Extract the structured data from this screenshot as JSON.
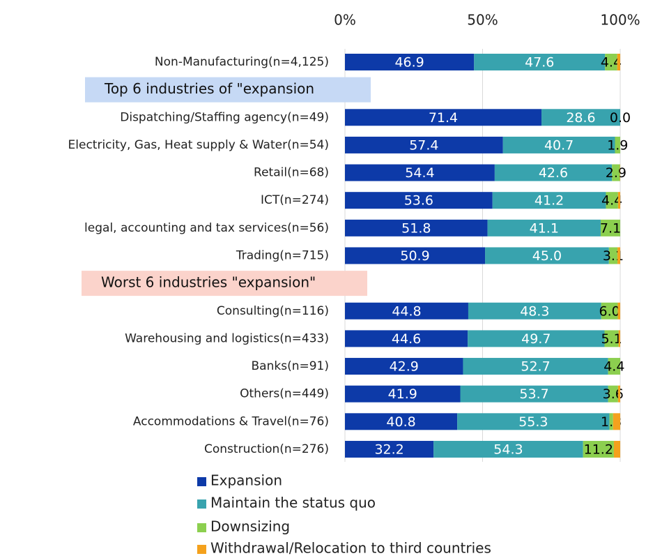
{
  "chart_data": {
    "type": "stacked-bar-horizontal",
    "categories": [
      "Non-Manufacturing(n=4,125)",
      "Top 6 industries of \"expansion",
      "Dispatching/Staffing agency(n=49)",
      "Electricity, Gas, Heat supply & Water(n=54)",
      "Retail(n=68)",
      "ICT(n=274)",
      "legal, accounting and tax services(n=56)",
      "Trading(n=715)",
      "Worst 6 industries  \"expansion\"",
      "Consulting(n=116)",
      "Warehousing and logistics(n=433)",
      "Banks(n=91)",
      "Others(n=449)",
      "Accommodations & Travel(n=76)",
      "Construction(n=276)"
    ],
    "label_backgrounds": [
      null,
      "#c6d9f5",
      null,
      null,
      null,
      null,
      null,
      null,
      "#fbd3cb",
      null,
      null,
      null,
      null,
      null,
      null
    ],
    "series": [
      {
        "name": "Expansion",
        "color": "#0d3aa8",
        "label_color": "#ffffff",
        "show_labels": true,
        "values": [
          46.9,
          null,
          71.4,
          57.4,
          54.4,
          53.6,
          51.8,
          50.9,
          null,
          44.8,
          44.6,
          42.9,
          41.9,
          40.8,
          32.2
        ],
        "value_labels": [
          "46.9",
          null,
          "71.4",
          "57.4",
          "54.4",
          "53.6",
          "51.8",
          "50.9",
          null,
          "44.8",
          "44.6",
          "42.9",
          "41.9",
          "40.8",
          "32.2"
        ]
      },
      {
        "name": "Maintain the status quo",
        "color": "#38a3ae",
        "label_color": "#ffffff",
        "show_labels": true,
        "values": [
          47.6,
          null,
          28.6,
          40.7,
          42.6,
          41.2,
          41.1,
          45,
          null,
          48.3,
          49.7,
          52.7,
          53.7,
          55.3,
          54.3
        ],
        "value_labels": [
          "47.6",
          null,
          "28.6",
          "40.7",
          "42.6",
          "41.2",
          "41.1",
          "45.0",
          null,
          "48.3",
          "49.7",
          "52.7",
          "53.7",
          "55.3",
          "54.3"
        ]
      },
      {
        "name": "Downsizing",
        "color": "#8ccf4f",
        "label_color": "#000000",
        "show_labels": true,
        "values": [
          4.4,
          null,
          0,
          1.9,
          2.9,
          4.4,
          7.1,
          3.1,
          null,
          6,
          5.1,
          4.4,
          3.6,
          1.3,
          11.2
        ],
        "value_labels": [
          "4.4",
          null,
          "0.0",
          "1.9",
          "2.9",
          "4.4",
          "7.1",
          "3.1",
          null,
          "6.0",
          "5.1",
          "4.4",
          "3.6",
          "1.3",
          "11.2"
        ]
      },
      {
        "name": "Withdrawal/Relocation to third countries",
        "color": "#f4a11d",
        "show_labels": false,
        "values": [
          1.1,
          null,
          0,
          0,
          0.1,
          0.8,
          0,
          1,
          null,
          0.9,
          0.6,
          0,
          0.8,
          2.6,
          2.3
        ]
      }
    ],
    "xlim": [
      0,
      100
    ],
    "xticks": [
      {
        "value": 0,
        "label": "0%"
      },
      {
        "value": 50,
        "label": "50%"
      },
      {
        "value": 100,
        "label": "100%"
      }
    ],
    "grid": true
  }
}
